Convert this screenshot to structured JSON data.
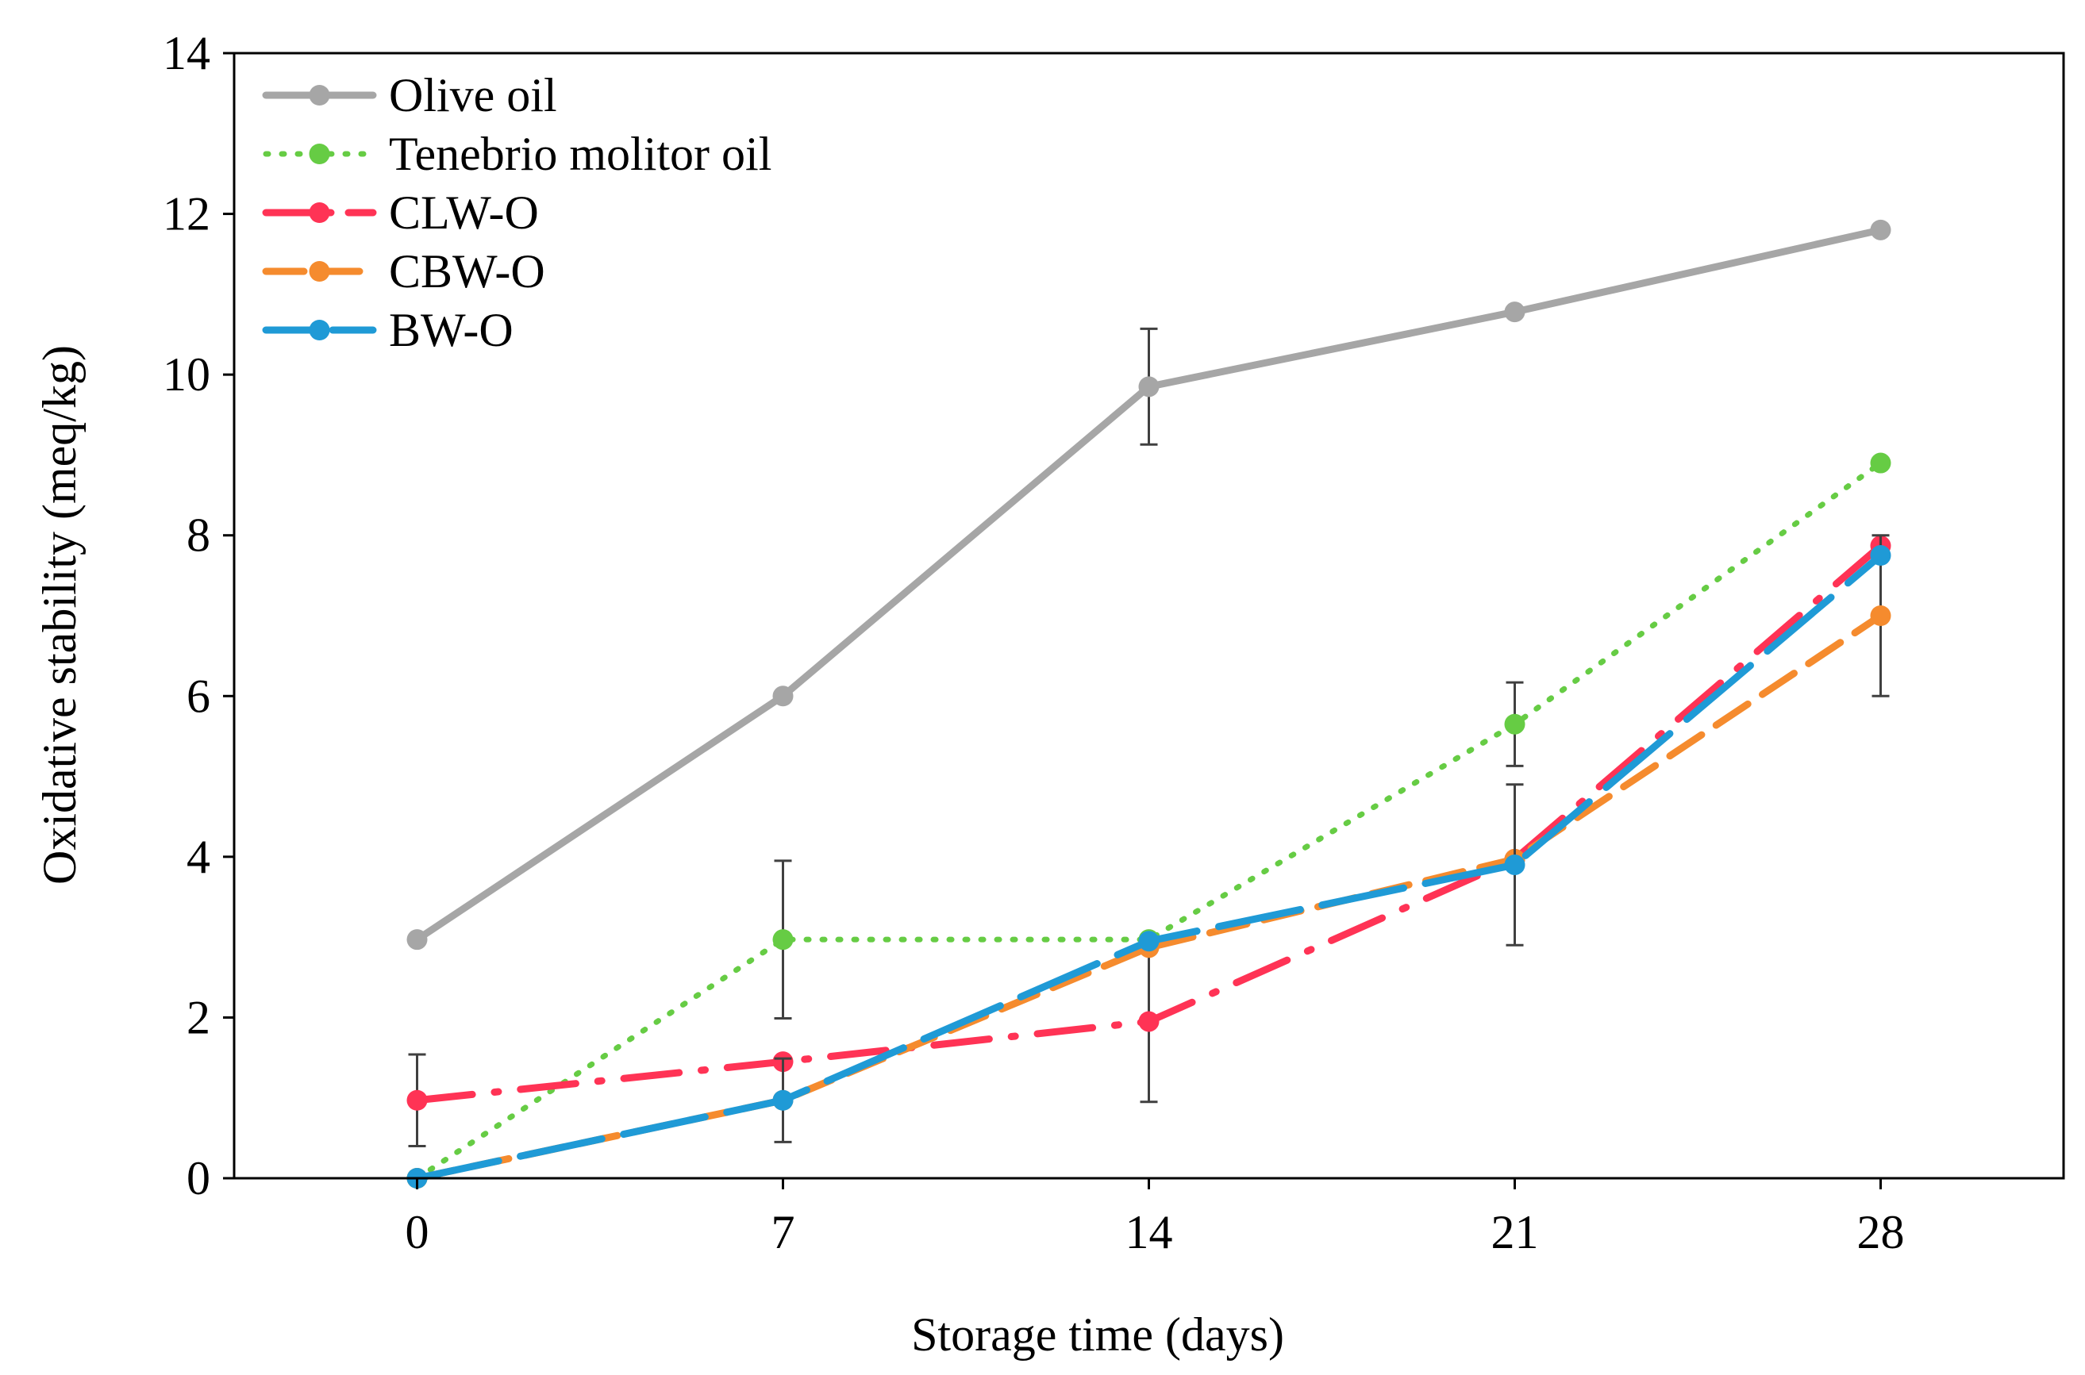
{
  "chart_data": {
    "type": "line",
    "title": "",
    "xlabel": "Storage time (days)",
    "ylabel": "Oxidative stability (meq/kg)",
    "x": [
      0,
      7,
      14,
      21,
      28
    ],
    "x_ticks": [
      "0",
      "7",
      "14",
      "21",
      "28"
    ],
    "xlim": [
      -3.5,
      31.5
    ],
    "ylim": [
      0,
      14
    ],
    "y_ticks": [
      "0",
      "2",
      "4",
      "6",
      "8",
      "10",
      "12",
      "14"
    ],
    "grid": false,
    "legend_position": "top-left",
    "series": [
      {
        "name": "Olive oil",
        "values": [
          2.97,
          6.0,
          9.85,
          10.78,
          11.8
        ],
        "errors": [
          null,
          null,
          0.72,
          null,
          null
        ],
        "color": "#a6a6a6",
        "dash": "solid"
      },
      {
        "name": "Tenebrio molitor oil",
        "values": [
          0,
          2.97,
          2.97,
          5.65,
          8.9
        ],
        "errors": [
          null,
          0.98,
          null,
          0.52,
          null
        ],
        "color": "#66cc44",
        "dash": "dot"
      },
      {
        "name": "CLW-O",
        "values": [
          0.97,
          1.45,
          1.95,
          3.97,
          7.87
        ],
        "errors": [
          0.57,
          null,
          1.0,
          null,
          null
        ],
        "color": "#ff3355",
        "dash": "dashdot"
      },
      {
        "name": "CBW-O",
        "values": [
          0,
          0.97,
          2.87,
          3.97,
          7.0
        ],
        "errors": [
          null,
          null,
          null,
          null,
          1.0
        ],
        "color": "#f58b2e",
        "dash": "dash"
      },
      {
        "name": "BW-O",
        "values": [
          0,
          0.97,
          2.95,
          3.9,
          7.75
        ],
        "errors": [
          null,
          0.52,
          null,
          1.0,
          null
        ],
        "color": "#1f9ad6",
        "dash": "longdash"
      }
    ]
  }
}
